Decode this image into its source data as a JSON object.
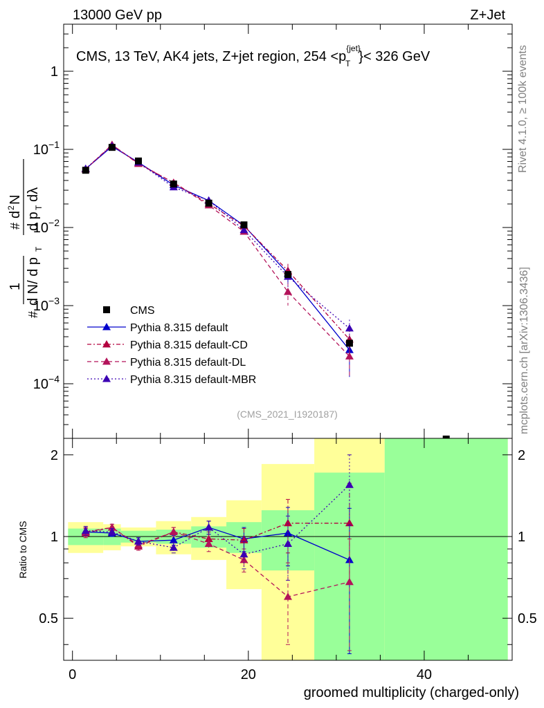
{
  "header": {
    "left": "13000 GeV pp",
    "right": "Z+Jet"
  },
  "side_labels": {
    "rivet": "Rivet 4.1.0, ≥ 100k events",
    "mcplots": "mcplots.cern.ch [arXiv:1306.3436]"
  },
  "main": {
    "title_main": "CMS, 13 TeV, AK4 jets, Z+jet region, 254 <p",
    "title_sup": "{jet}",
    "title_sub": "T",
    "title_tail": "}< 326 GeV",
    "analysis_id": "(CMS_2021_I1920187)",
    "ylabel": "1/N dN/dp_T dN/dp_T dlambda",
    "yticks": [
      {
        "m": "1",
        "e": ""
      },
      {
        "m": "10",
        "e": "−1"
      },
      {
        "m": "10",
        "e": "−2"
      },
      {
        "m": "10",
        "e": "−3"
      },
      {
        "m": "10",
        "e": "−4"
      }
    ]
  },
  "ratio": {
    "ylabel": "Ratio to CMS",
    "yticks": [
      "2",
      "1",
      "0.5"
    ]
  },
  "xaxis": {
    "label": "groomed multiplicity (charged-only)",
    "ticks": [
      "0",
      "20",
      "40"
    ]
  },
  "legend": [
    "CMS",
    "Pythia 8.315 default",
    "Pythia 8.315 default-CD",
    "Pythia 8.315 default-DL",
    "Pythia 8.315 default-MBR"
  ],
  "colors": {
    "data": "#000000",
    "default": "#0000cc",
    "cd": "#b3003f",
    "dl": "#b3135a",
    "mbr": "#3b00b3",
    "band_inner": "#99ff99",
    "band_outer": "#ffff99"
  },
  "chart_data": {
    "type": "line",
    "title": "CMS, 13 TeV, AK4 jets, Z+jet region, 254 <pT{jet}< 326 GeV",
    "xlabel": "groomed multiplicity (charged-only)",
    "ylabel": "1/N dN/dpT dN/dpT dlambda",
    "xlim": [
      -1,
      50
    ],
    "ylim": [
      2e-05,
      4
    ],
    "yscale": "log",
    "ratio_ylim": [
      0.35,
      2.3
    ],
    "bin_edges": [
      -0.5,
      3.5,
      5.5,
      9.5,
      13.5,
      17.5,
      21.5,
      27.5,
      35.5,
      49.5
    ],
    "x": [
      1.5,
      4.5,
      7.5,
      11.5,
      15.5,
      19.5,
      24.5,
      31.5
    ],
    "data": [
      0.054,
      0.106,
      0.071,
      0.036,
      0.0205,
      0.0108,
      0.0025,
      0.00033
    ],
    "data_offscale_point": {
      "x": 42.5,
      "note": "marker drawn at top edge of main panel"
    },
    "band_inner_rel": [
      0.07,
      0.07,
      0.05,
      0.06,
      0.09,
      0.13,
      0.25,
      0.72,
      1.5
    ],
    "band_outer_rel": [
      0.13,
      0.11,
      0.08,
      0.14,
      0.18,
      0.36,
      0.85,
      1.5,
      1.5
    ],
    "series": [
      {
        "name": "Pythia 8.315 default",
        "key": "default",
        "style": "solid",
        "ratio": [
          1.04,
          1.03,
          0.96,
          0.97,
          1.08,
          0.98,
          1.03,
          0.82
        ],
        "ratio_err": [
          0.04,
          0.03,
          0.03,
          0.04,
          0.06,
          0.1,
          0.25,
          0.45
        ]
      },
      {
        "name": "Pythia 8.315 default-CD",
        "key": "cd",
        "style": "dashdot",
        "ratio": [
          1.04,
          1.08,
          0.92,
          1.04,
          0.98,
          0.97,
          1.12,
          1.12
        ],
        "ratio_err": [
          0.04,
          0.03,
          0.03,
          0.04,
          0.06,
          0.1,
          0.25,
          0.45
        ]
      },
      {
        "name": "Pythia 8.315 default-DL",
        "key": "dl",
        "style": "dashed",
        "ratio": [
          1.03,
          1.08,
          0.93,
          1.04,
          0.94,
          0.82,
          0.6,
          0.68
        ],
        "ratio_err": [
          0.04,
          0.03,
          0.03,
          0.04,
          0.06,
          0.08,
          0.2,
          0.3
        ]
      },
      {
        "name": "Pythia 8.315 default-MBR",
        "key": "mbr",
        "style": "dotted",
        "ratio": [
          1.05,
          1.04,
          0.96,
          0.91,
          1.08,
          0.86,
          0.94,
          1.55
        ],
        "ratio_err": [
          0.04,
          0.03,
          0.03,
          0.04,
          0.06,
          0.1,
          0.25,
          0.45
        ]
      }
    ]
  }
}
